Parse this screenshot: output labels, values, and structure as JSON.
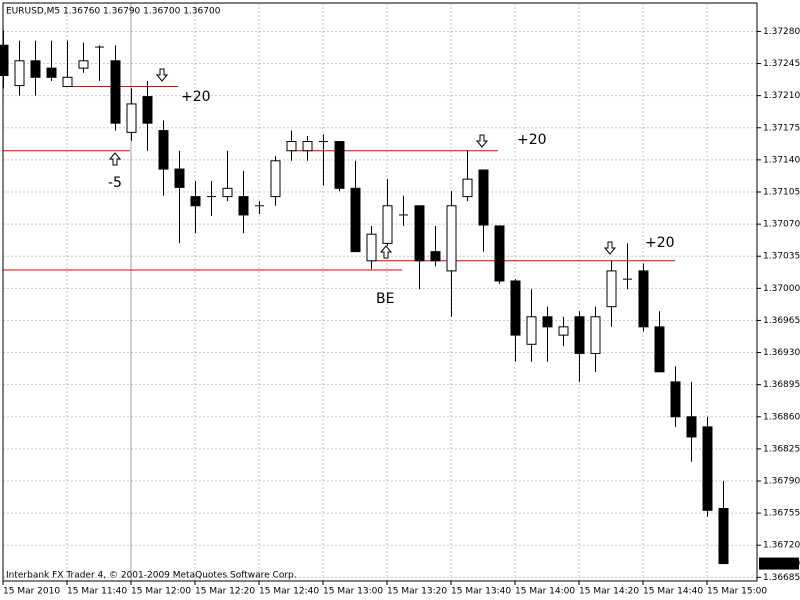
{
  "chart_data": {
    "type": "candlestick",
    "title": "EURUSD,M5  1.36760 1.36790 1.36700 1.36700",
    "footer": "Interbank FX Trader 4, © 2001-2009 MetaQuotes Software Corp.",
    "categories": [
      "15 Mar 2010",
      null,
      null,
      null,
      "15 Mar 11:40",
      null,
      null,
      null,
      "15 Mar 12:00",
      null,
      null,
      null,
      "15 Mar 12:20",
      null,
      null,
      null,
      "15 Mar 12:40",
      null,
      null,
      null,
      "15 Mar 13:00",
      null,
      null,
      null,
      "15 Mar 13:20",
      null,
      null,
      null,
      "15 Mar 13:40",
      null,
      null,
      null,
      "15 Mar 14:00",
      null,
      null,
      null,
      "15 Mar 14:20",
      null,
      null,
      null,
      "15 Mar 14:40",
      null,
      null,
      null,
      "15 Mar 15:00",
      null
    ],
    "open": [
      1.37265,
      1.37221,
      1.37248,
      1.3724,
      1.3722,
      1.3724,
      1.37263,
      1.37248,
      1.3717,
      1.37209,
      1.37172,
      1.3713,
      1.371,
      1.371,
      1.371,
      1.371,
      1.3709,
      1.371,
      1.3715,
      1.3715,
      1.3716,
      1.3716,
      1.37109,
      1.3703,
      1.37049,
      1.3708,
      1.3709,
      1.3704,
      1.37019,
      1.371,
      1.37129,
      1.37068,
      1.37008,
      1.36939,
      1.36969,
      1.36949,
      1.36969,
      1.36929,
      1.3698,
      1.3701,
      1.37019,
      1.36958,
      1.36898,
      1.3686,
      1.36849,
      1.3676
    ],
    "high": [
      1.37281,
      1.3727,
      1.3727,
      1.3727,
      1.3727,
      1.37268,
      1.37265,
      1.37265,
      1.37218,
      1.37226,
      1.37183,
      1.3715,
      1.37117,
      1.37117,
      1.3715,
      1.37128,
      1.37095,
      1.37144,
      1.37172,
      1.37166,
      1.37168,
      1.3716,
      1.37139,
      1.37068,
      1.37119,
      1.37101,
      1.3709,
      1.37068,
      1.37106,
      1.3715,
      1.37129,
      1.37068,
      1.3701,
      1.36999,
      1.3698,
      1.36969,
      1.36975,
      1.3698,
      1.3703,
      1.37049,
      1.37027,
      1.36975,
      1.36915,
      1.36898,
      1.3686,
      1.3679
    ],
    "low": [
      1.37218,
      1.3721,
      1.3721,
      1.37226,
      1.3722,
      1.37235,
      1.37226,
      1.37172,
      1.37161,
      1.3715,
      1.37101,
      1.37049,
      1.3706,
      1.37079,
      1.37095,
      1.3706,
      1.37081,
      1.3709,
      1.37139,
      1.37139,
      1.37112,
      1.37106,
      1.3704,
      1.37021,
      1.37046,
      1.37068,
      1.36999,
      1.37024,
      1.36969,
      1.37095,
      1.3704,
      1.37005,
      1.3692,
      1.3692,
      1.3692,
      1.36937,
      1.36898,
      1.36909,
      1.36958,
      1.36999,
      1.36953,
      1.36909,
      1.36849,
      1.36811,
      1.36751,
      1.367
    ],
    "close": [
      1.37232,
      1.37248,
      1.3723,
      1.3723,
      1.3723,
      1.37248,
      1.37263,
      1.3718,
      1.37201,
      1.3718,
      1.3713,
      1.3711,
      1.3709,
      1.371,
      1.37109,
      1.3708,
      1.3709,
      1.37139,
      1.3716,
      1.3716,
      1.3716,
      1.37109,
      1.3704,
      1.37059,
      1.3709,
      1.3708,
      1.3703,
      1.3703,
      1.3709,
      1.37119,
      1.37069,
      1.37008,
      1.36949,
      1.36969,
      1.36958,
      1.36958,
      1.36929,
      1.36969,
      1.37019,
      1.3701,
      1.36958,
      1.36909,
      1.3686,
      1.36838,
      1.36758,
      1.367
    ],
    "up_color": "#ffffff",
    "down_color": "#000000",
    "outline_color": "#000000",
    "ylim": [
      1.36681,
      1.37311
    ],
    "yticks": [
      {
        "value": 1.3728,
        "label": "1.37280"
      },
      {
        "value": 1.37245,
        "label": "1.37245"
      },
      {
        "value": 1.3721,
        "label": "1.37210"
      },
      {
        "value": 1.37175,
        "label": "1.37175"
      },
      {
        "value": 1.3714,
        "label": "1.37140"
      },
      {
        "value": 1.37105,
        "label": "1.37105"
      },
      {
        "value": 1.3707,
        "label": "1.37070"
      },
      {
        "value": 1.37035,
        "label": "1.37035"
      },
      {
        "value": 1.37,
        "label": "1.37000"
      },
      {
        "value": 1.36965,
        "label": "1.36965"
      },
      {
        "value": 1.3693,
        "label": "1.36930"
      },
      {
        "value": 1.36895,
        "label": "1.36895"
      },
      {
        "value": 1.3686,
        "label": "1.36860"
      },
      {
        "value": 1.36825,
        "label": "1.36825"
      },
      {
        "value": 1.3679,
        "label": "1.36790"
      },
      {
        "value": 1.36755,
        "label": "1.36755"
      },
      {
        "value": 1.3672,
        "label": "1.36720"
      },
      {
        "value": 1.36685,
        "label": "1.36685"
      }
    ],
    "current_price": {
      "value": 1.367,
      "label": "1.36700"
    },
    "grid": true,
    "levels": [
      1.3722,
      1.3715,
      1.3715,
      1.3702,
      1.3703
    ],
    "level_color": "#e00000",
    "annotations": [
      "+20",
      "-5",
      "BE",
      "+20",
      "+20"
    ]
  }
}
